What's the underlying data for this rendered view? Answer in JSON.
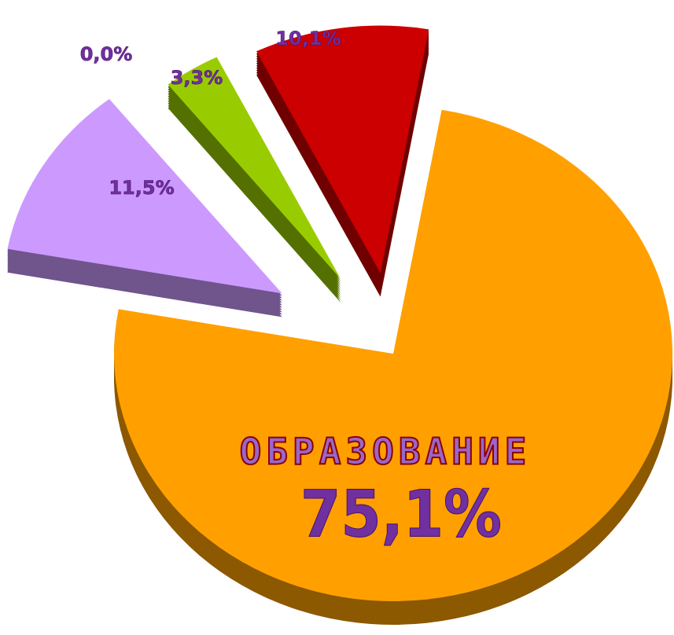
{
  "chart_data": {
    "type": "pie",
    "categories": [
      "ОБРАЗОВАНИЕ",
      null,
      null,
      null,
      null
    ],
    "values": [
      75.1,
      11.5,
      0.0,
      3.3,
      10.1
    ],
    "value_labels": [
      "75,1%",
      "11,5%",
      "0,0%",
      "3,3%",
      "10,1%"
    ],
    "colors": [
      "#ffa000",
      "#cc99ff",
      "#1d5c5c",
      "#99cc00",
      "#cc0000"
    ]
  }
}
